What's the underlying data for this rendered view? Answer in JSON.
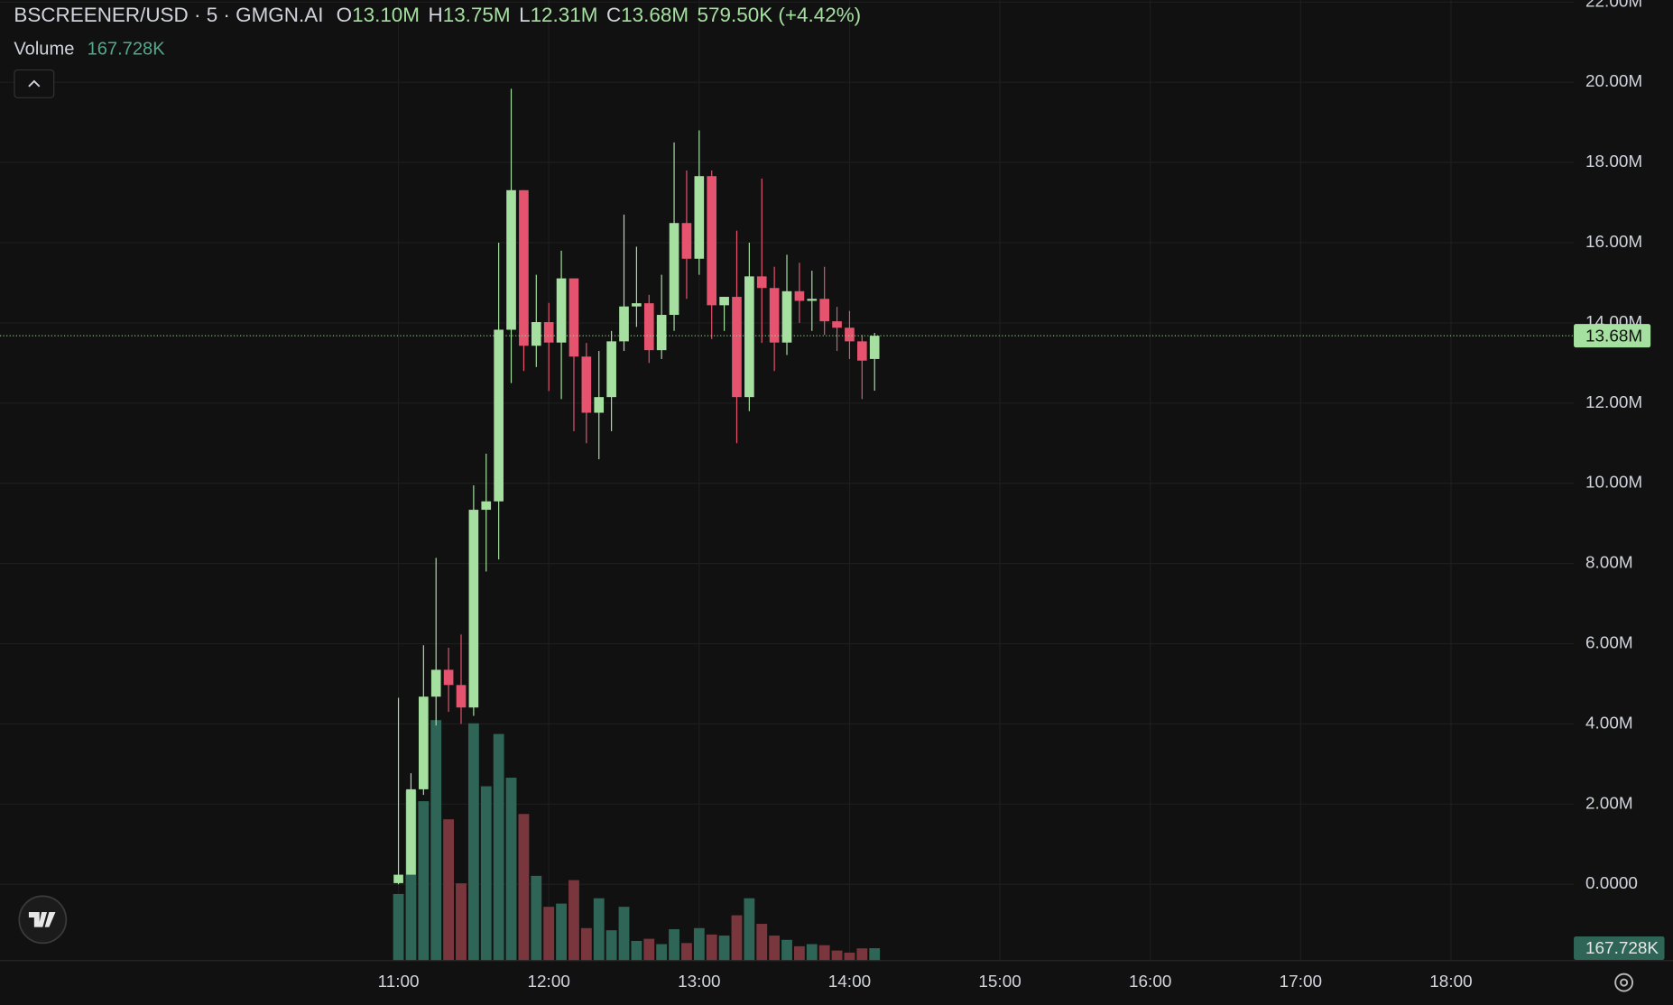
{
  "chart_data": {
    "type": "candlestick",
    "title": "BSCREENER/USD · 5 · GMGN.AI",
    "legend": {
      "fields": [
        {
          "key": "O",
          "label": "13.10M"
        },
        {
          "key": "H",
          "label": "13.75M"
        },
        {
          "key": "L",
          "label": "12.31M"
        },
        {
          "key": "C",
          "label": "13.68M"
        }
      ],
      "change": "579.50K (+4.42%)"
    },
    "x": [
      "11:00",
      "11:05",
      "11:10",
      "11:15",
      "11:20",
      "11:25",
      "11:30",
      "11:35",
      "11:40",
      "11:45",
      "11:50",
      "11:55",
      "12:00",
      "12:05",
      "12:10",
      "12:15",
      "12:20",
      "12:25",
      "12:30",
      "12:35",
      "12:40",
      "12:45",
      "12:50",
      "12:55",
      "13:00",
      "13:05",
      "13:10",
      "13:15",
      "13:20",
      "13:25",
      "13:30",
      "13:35",
      "13:40",
      "13:45",
      "13:50",
      "13:55",
      "14:00",
      "14:05",
      "14:10"
    ],
    "open": [
      0.03,
      0.24,
      2.37,
      4.68,
      5.35,
      4.97,
      4.41,
      9.34,
      9.55,
      13.83,
      17.31,
      13.43,
      14.02,
      13.51,
      15.11,
      13.16,
      11.76,
      12.15,
      13.54,
      14.41,
      14.49,
      13.32,
      14.2,
      16.49,
      15.6,
      17.66,
      14.44,
      14.65,
      12.15,
      15.16,
      14.87,
      13.51,
      14.79,
      14.55,
      14.6,
      14.04,
      13.88,
      13.54,
      13.1
    ],
    "high": [
      4.65,
      2.77,
      5.96,
      8.14,
      5.9,
      6.23,
      9.95,
      10.74,
      16.0,
      19.84,
      17.31,
      15.2,
      14.5,
      15.8,
      15.11,
      13.5,
      13.3,
      13.8,
      16.7,
      15.9,
      14.7,
      15.2,
      18.5,
      17.8,
      18.8,
      17.8,
      14.65,
      16.3,
      16.0,
      17.6,
      15.4,
      15.7,
      15.5,
      15.3,
      15.4,
      14.4,
      14.3,
      13.7,
      13.75
    ],
    "low": [
      0,
      0.24,
      2.23,
      3.96,
      4.3,
      4.0,
      4.2,
      7.8,
      8.1,
      12.5,
      12.8,
      12.9,
      12.3,
      12.1,
      11.3,
      11.0,
      10.6,
      11.3,
      13.3,
      13.9,
      13.0,
      13.1,
      13.8,
      14.6,
      15.2,
      13.6,
      13.8,
      11.0,
      11.8,
      13.5,
      12.8,
      13.2,
      14.0,
      13.8,
      13.7,
      13.3,
      13.1,
      12.1,
      12.31
    ],
    "close": [
      0.24,
      2.37,
      4.68,
      5.35,
      4.97,
      4.41,
      9.34,
      9.55,
      13.83,
      17.31,
      13.43,
      14.02,
      13.51,
      15.11,
      13.16,
      11.76,
      12.15,
      13.54,
      14.41,
      14.49,
      13.32,
      14.2,
      16.49,
      15.6,
      17.66,
      14.44,
      14.65,
      12.15,
      15.16,
      14.87,
      13.51,
      14.79,
      14.55,
      14.6,
      14.04,
      13.88,
      13.54,
      13.06,
      13.68
    ],
    "up_color": "#a5e0a0",
    "down_color": "#e5536e",
    "volume": {
      "name": "Volume",
      "values": [
        930,
        2385,
        2235,
        3375,
        1980,
        1080,
        3330,
        2445,
        3180,
        2565,
        2055,
        1185,
        750,
        795,
        1125,
        450,
        870,
        420,
        750,
        270,
        300,
        225,
        435,
        240,
        450,
        360,
        345,
        630,
        870,
        510,
        345,
        285,
        195,
        225,
        210,
        135,
        105,
        165,
        167.728
      ],
      "up_color": "#2e6556",
      "down_color": "#7a363d",
      "axis": "y2"
    },
    "ylim": [
      -1.89,
      22.05
    ],
    "yticks": [
      {
        "value": 22,
        "label": "22.00M"
      },
      {
        "value": 20,
        "label": "20.00M"
      },
      {
        "value": 18,
        "label": "18.00M"
      },
      {
        "value": 16,
        "label": "16.00M"
      },
      {
        "value": 14,
        "label": "14.00M"
      },
      {
        "value": 12,
        "label": "12.00M"
      },
      {
        "value": 10,
        "label": "10.00M"
      },
      {
        "value": 8,
        "label": "8.00M"
      },
      {
        "value": 6,
        "label": "6.00M"
      },
      {
        "value": 4,
        "label": "4.00M"
      },
      {
        "value": 2,
        "label": "2.00M"
      },
      {
        "value": 0,
        "label": "0.0000"
      }
    ],
    "y2lim": [
      0,
      13500
    ],
    "xlim": [
      "08:21",
      "18:49"
    ],
    "xticks": [
      "11:00",
      "12:00",
      "13:00",
      "14:00",
      "15:00",
      "16:00",
      "17:00",
      "18:00"
    ],
    "grid": true,
    "last_price": {
      "value": 13.68,
      "label": "13.68M"
    },
    "last_volume": {
      "value": 167.728,
      "label": "167.728K"
    }
  }
}
